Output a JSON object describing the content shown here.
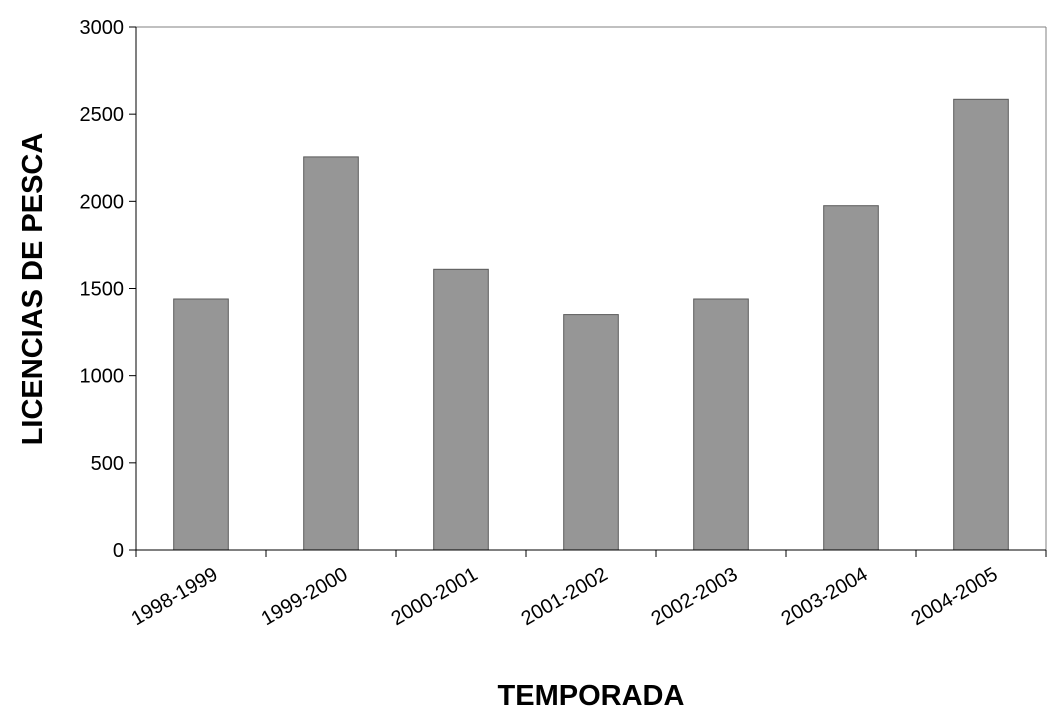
{
  "chart_data": {
    "type": "bar",
    "title": "",
    "xlabel": "TEMPORADA",
    "ylabel": "LICENCIAS DE PESCA",
    "categories": [
      "1998-1999",
      "1999-2000",
      "2000-2001",
      "2001-2002",
      "2002-2003",
      "2003-2004",
      "2004-2005"
    ],
    "values": [
      1440,
      2255,
      1610,
      1350,
      1440,
      1975,
      2585
    ],
    "ylim": [
      0,
      3000
    ],
    "yticks": [
      0,
      500,
      1000,
      1500,
      2000,
      2500,
      3000
    ],
    "grid": false,
    "legend": "none",
    "bar_color": "#969696",
    "bar_stroke": "#595959",
    "axis_color": "#000000"
  }
}
